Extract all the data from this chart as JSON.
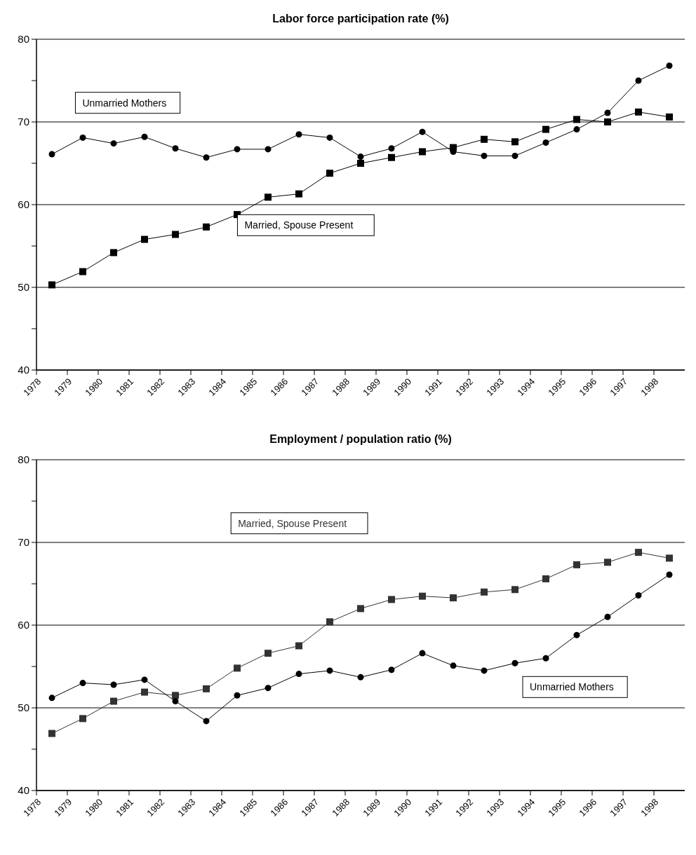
{
  "chart_data": [
    {
      "type": "line",
      "title": "Labor force participation rate (%)",
      "x": [
        1978.5,
        1979.5,
        1980.5,
        1981.5,
        1982.5,
        1983.5,
        1984.5,
        1985.5,
        1986.5,
        1987.5,
        1988.5,
        1989.5,
        1990.5,
        1991.5,
        1992.5,
        1993.5,
        1994.5,
        1995.5,
        1996.5,
        1997.5,
        1998.5
      ],
      "series": [
        {
          "name": "Unmarried Mothers",
          "color": "#000000",
          "marker": "circle",
          "values": [
            66.1,
            68.1,
            67.4,
            68.2,
            66.8,
            65.7,
            66.7,
            66.7,
            68.5,
            68.1,
            65.8,
            66.8,
            68.8,
            66.4,
            65.9,
            65.9,
            67.5,
            69.1,
            71.1,
            75.0,
            76.8
          ]
        },
        {
          "name": "Married, Spouse Present",
          "color": "#000000",
          "marker": "square",
          "values": [
            50.3,
            51.9,
            54.2,
            55.8,
            56.4,
            57.3,
            58.8,
            60.9,
            61.3,
            63.8,
            65.0,
            65.7,
            66.4,
            66.9,
            67.9,
            67.6,
            69.1,
            70.3,
            70.0,
            71.2,
            70.6
          ]
        }
      ],
      "xlim": [
        1978,
        1999
      ],
      "xticks": [
        1978,
        1979,
        1980,
        1981,
        1982,
        1983,
        1984,
        1985,
        1986,
        1987,
        1988,
        1989,
        1990,
        1991,
        1992,
        1993,
        1994,
        1995,
        1996,
        1997,
        1998
      ],
      "ylim": [
        40,
        80
      ],
      "yticks": [
        40,
        {
          "value": 45,
          "label": null
        },
        50,
        {
          "value": 55,
          "label": null
        },
        60,
        {
          "value": 65,
          "label": null
        },
        70,
        {
          "value": 75,
          "label": null
        },
        80
      ],
      "grid": "y",
      "legend": false
    },
    {
      "type": "line",
      "title": "Employment / population ratio (%)",
      "x": [
        1978.5,
        1979.5,
        1980.5,
        1981.5,
        1982.5,
        1983.5,
        1984.5,
        1985.5,
        1986.5,
        1987.5,
        1988.5,
        1989.5,
        1990.5,
        1991.5,
        1992.5,
        1993.5,
        1994.5,
        1995.5,
        1996.5,
        1997.5,
        1998.5
      ],
      "series": [
        {
          "name": "Married, Spouse Present",
          "color": "#333333",
          "marker": "square",
          "values": [
            46.9,
            48.7,
            50.8,
            51.9,
            51.5,
            52.3,
            54.8,
            56.6,
            57.5,
            60.4,
            62.0,
            63.1,
            63.5,
            63.3,
            64.0,
            64.3,
            65.6,
            67.3,
            67.6,
            68.8,
            68.1
          ]
        },
        {
          "name": "Unmarried Mothers",
          "color": "#000000",
          "marker": "circle",
          "values": [
            51.2,
            53.0,
            52.8,
            53.4,
            50.8,
            48.4,
            51.5,
            52.4,
            54.1,
            54.5,
            53.7,
            54.6,
            56.6,
            55.1,
            54.5,
            55.4,
            56.0,
            58.8,
            61.0,
            63.6,
            66.1
          ]
        }
      ],
      "xlim": [
        1978,
        1999
      ],
      "xticks": [
        1978,
        1979,
        1980,
        1981,
        1982,
        1983,
        1984,
        1985,
        1986,
        1987,
        1988,
        1989,
        1990,
        1991,
        1992,
        1993,
        1994,
        1995,
        1996,
        1997,
        1998
      ],
      "ylim": [
        40,
        80
      ],
      "yticks": [
        40,
        {
          "value": 45,
          "label": null
        },
        50,
        {
          "value": 55,
          "label": null
        },
        60,
        {
          "value": 65,
          "label": null
        },
        70,
        {
          "value": 75,
          "label": null
        },
        80
      ],
      "grid": "y",
      "legend": false
    }
  ]
}
